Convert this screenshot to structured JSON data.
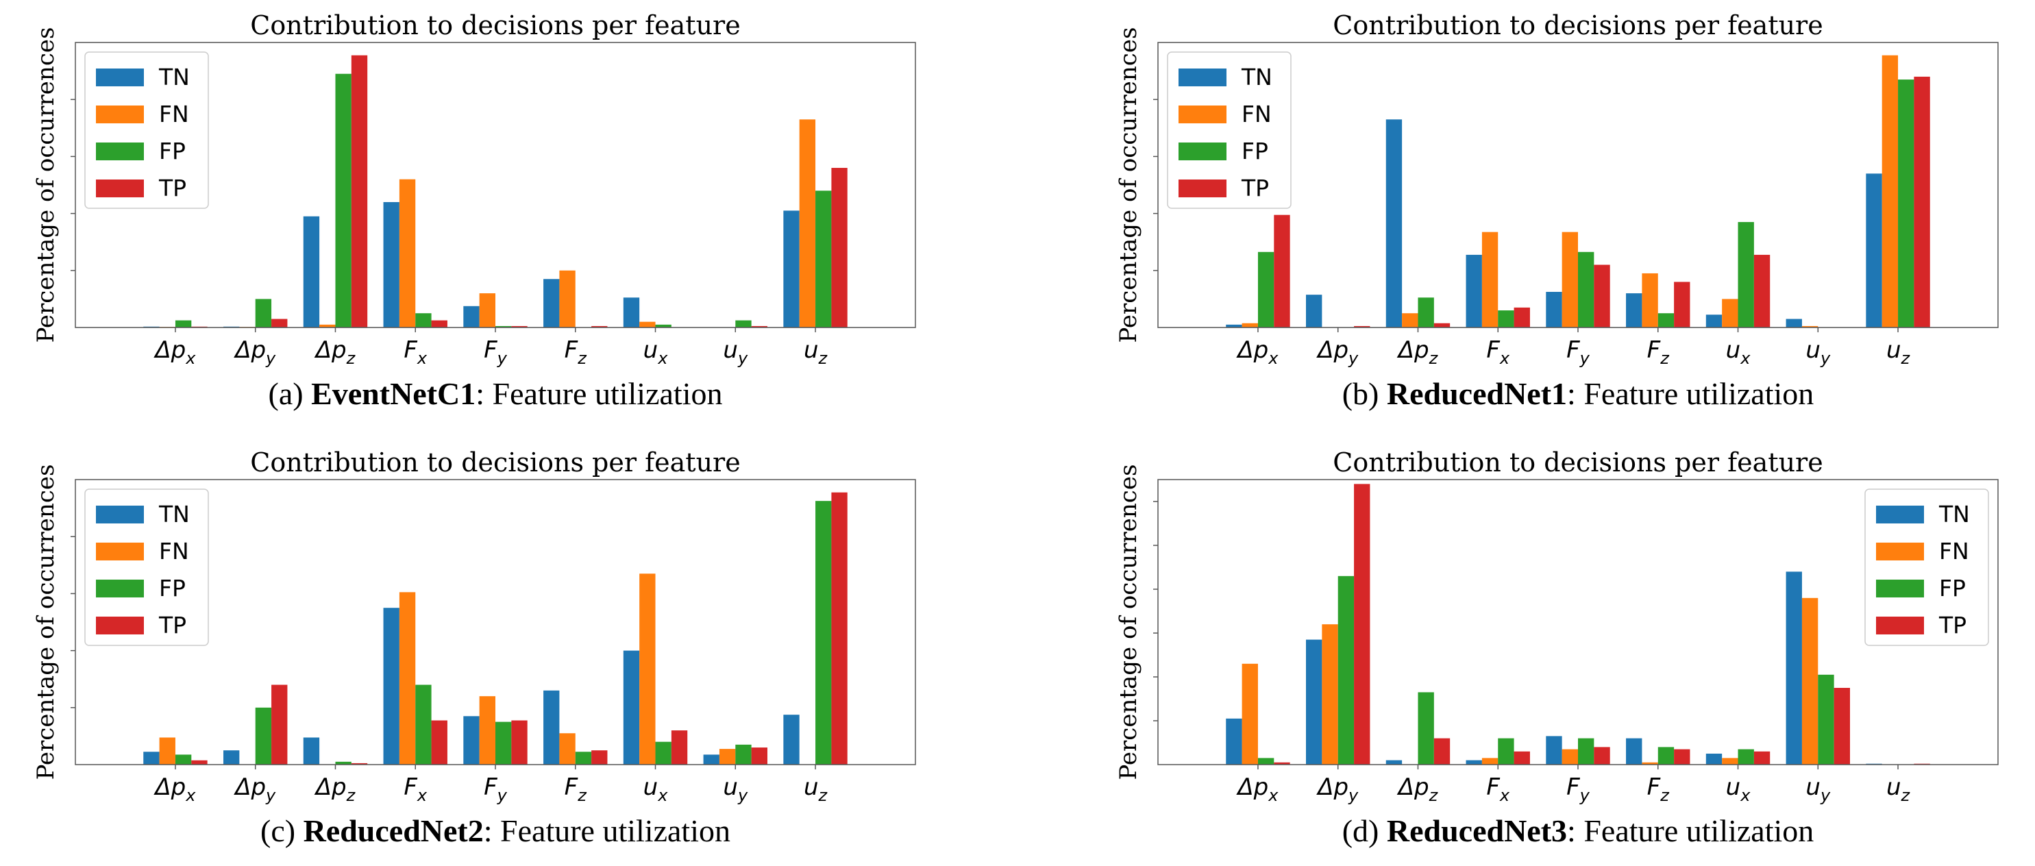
{
  "colors": {
    "TN": "#1f77b4",
    "FN": "#ff7f0e",
    "FP": "#2ca02c",
    "TP": "#d62728"
  },
  "chart_data": [
    {
      "type": "bar",
      "title": "Contribution to decisions per feature",
      "ylabel": "Percentage of occurrences",
      "caption_prefix": "(a) ",
      "caption_bold": "EventNetC1",
      "caption_suffix": ": Feature utilization",
      "legend": "top-left",
      "ylim": [
        0,
        100
      ],
      "grid": false,
      "categories": [
        {
          "base": "Δp",
          "sub": "x"
        },
        {
          "base": "Δp",
          "sub": "y"
        },
        {
          "base": "Δp",
          "sub": "z"
        },
        {
          "base": "F",
          "sub": "x"
        },
        {
          "base": "F",
          "sub": "y"
        },
        {
          "base": "F",
          "sub": "z"
        },
        {
          "base": "u",
          "sub": "x"
        },
        {
          "base": "u",
          "sub": "y"
        },
        {
          "base": "u",
          "sub": "z"
        }
      ],
      "series": [
        {
          "name": "TN",
          "values": [
            0.3,
            0.3,
            39,
            44,
            7.5,
            17,
            10.5,
            0,
            41
          ]
        },
        {
          "name": "FN",
          "values": [
            0.2,
            0.2,
            1,
            52,
            12,
            20,
            2,
            0,
            73
          ]
        },
        {
          "name": "FP",
          "values": [
            2.5,
            10,
            89,
            5,
            0.5,
            0,
            1,
            2.5,
            48
          ]
        },
        {
          "name": "TP",
          "values": [
            0.3,
            3,
            95.5,
            2.5,
            0.5,
            0.5,
            0,
            0.5,
            56
          ]
        }
      ]
    },
    {
      "type": "bar",
      "title": "Contribution to decisions per feature",
      "ylabel": "Percentage of occurrences",
      "caption_prefix": "(b) ",
      "caption_bold": "ReducedNet1",
      "caption_suffix": ": Feature utilization",
      "legend": "top-left",
      "ylim": [
        0,
        100
      ],
      "grid": false,
      "categories": [
        {
          "base": "Δp",
          "sub": "x"
        },
        {
          "base": "Δp",
          "sub": "y"
        },
        {
          "base": "Δp",
          "sub": "z"
        },
        {
          "base": "F",
          "sub": "x"
        },
        {
          "base": "F",
          "sub": "y"
        },
        {
          "base": "F",
          "sub": "z"
        },
        {
          "base": "u",
          "sub": "x"
        },
        {
          "base": "u",
          "sub": "y"
        },
        {
          "base": "u",
          "sub": "z"
        }
      ],
      "series": [
        {
          "name": "TN",
          "values": [
            1,
            11.5,
            73,
            25.5,
            12.5,
            12,
            4.5,
            3,
            54
          ]
        },
        {
          "name": "FN",
          "values": [
            1.5,
            0,
            5,
            33.5,
            33.5,
            19,
            10,
            0.5,
            95.5
          ]
        },
        {
          "name": "FP",
          "values": [
            26.5,
            0,
            10.5,
            6,
            26.5,
            5,
            37,
            0,
            87
          ]
        },
        {
          "name": "TP",
          "values": [
            39.5,
            0.5,
            1.5,
            7,
            22,
            16,
            25.5,
            0,
            88
          ]
        }
      ]
    },
    {
      "type": "bar",
      "title": "Contribution to decisions per feature",
      "ylabel": "Percentage of occurrences",
      "caption_prefix": "(c) ",
      "caption_bold": "ReducedNet2",
      "caption_suffix": ": Feature utilization",
      "legend": "top-left",
      "ylim": [
        0,
        100
      ],
      "grid": false,
      "categories": [
        {
          "base": "Δp",
          "sub": "x"
        },
        {
          "base": "Δp",
          "sub": "y"
        },
        {
          "base": "Δp",
          "sub": "z"
        },
        {
          "base": "F",
          "sub": "x"
        },
        {
          "base": "F",
          "sub": "y"
        },
        {
          "base": "F",
          "sub": "z"
        },
        {
          "base": "u",
          "sub": "x"
        },
        {
          "base": "u",
          "sub": "y"
        },
        {
          "base": "u",
          "sub": "z"
        }
      ],
      "series": [
        {
          "name": "TN",
          "values": [
            4.5,
            5,
            9.5,
            55,
            17,
            26,
            40,
            3.5,
            17.5
          ]
        },
        {
          "name": "FN",
          "values": [
            9.5,
            0,
            0,
            60.5,
            24,
            11,
            67,
            5.5,
            0
          ]
        },
        {
          "name": "FP",
          "values": [
            3.5,
            20,
            1,
            28,
            15,
            4.5,
            8,
            7,
            92.5
          ]
        },
        {
          "name": "TP",
          "values": [
            1.5,
            28,
            0.5,
            15.5,
            15.5,
            5,
            12,
            6,
            95.5
          ]
        }
      ]
    },
    {
      "type": "bar",
      "title": "Contribution to decisions per feature",
      "ylabel": "Percentage of occurrences",
      "caption_prefix": "(d) ",
      "caption_bold": "ReducedNet3",
      "caption_suffix": ": Feature utilization",
      "legend": "top-right",
      "ylim": [
        0,
        65
      ],
      "grid": false,
      "categories": [
        {
          "base": "Δp",
          "sub": "x"
        },
        {
          "base": "Δp",
          "sub": "y"
        },
        {
          "base": "Δp",
          "sub": "z"
        },
        {
          "base": "F",
          "sub": "x"
        },
        {
          "base": "F",
          "sub": "y"
        },
        {
          "base": "F",
          "sub": "z"
        },
        {
          "base": "u",
          "sub": "x"
        },
        {
          "base": "u",
          "sub": "y"
        },
        {
          "base": "u",
          "sub": "z"
        }
      ],
      "series": [
        {
          "name": "TN",
          "values": [
            10.5,
            28.5,
            1,
            1,
            6.5,
            6,
            2.5,
            44,
            0.2
          ]
        },
        {
          "name": "FN",
          "values": [
            23,
            32,
            0,
            1.5,
            3.5,
            0.5,
            1.5,
            38,
            0
          ]
        },
        {
          "name": "FP",
          "values": [
            1.5,
            43,
            16.5,
            6,
            6,
            4,
            3.5,
            20.5,
            0
          ]
        },
        {
          "name": "TP",
          "values": [
            0.5,
            64,
            6,
            3,
            4,
            3.5,
            3,
            17.5,
            0.2
          ]
        }
      ]
    }
  ]
}
